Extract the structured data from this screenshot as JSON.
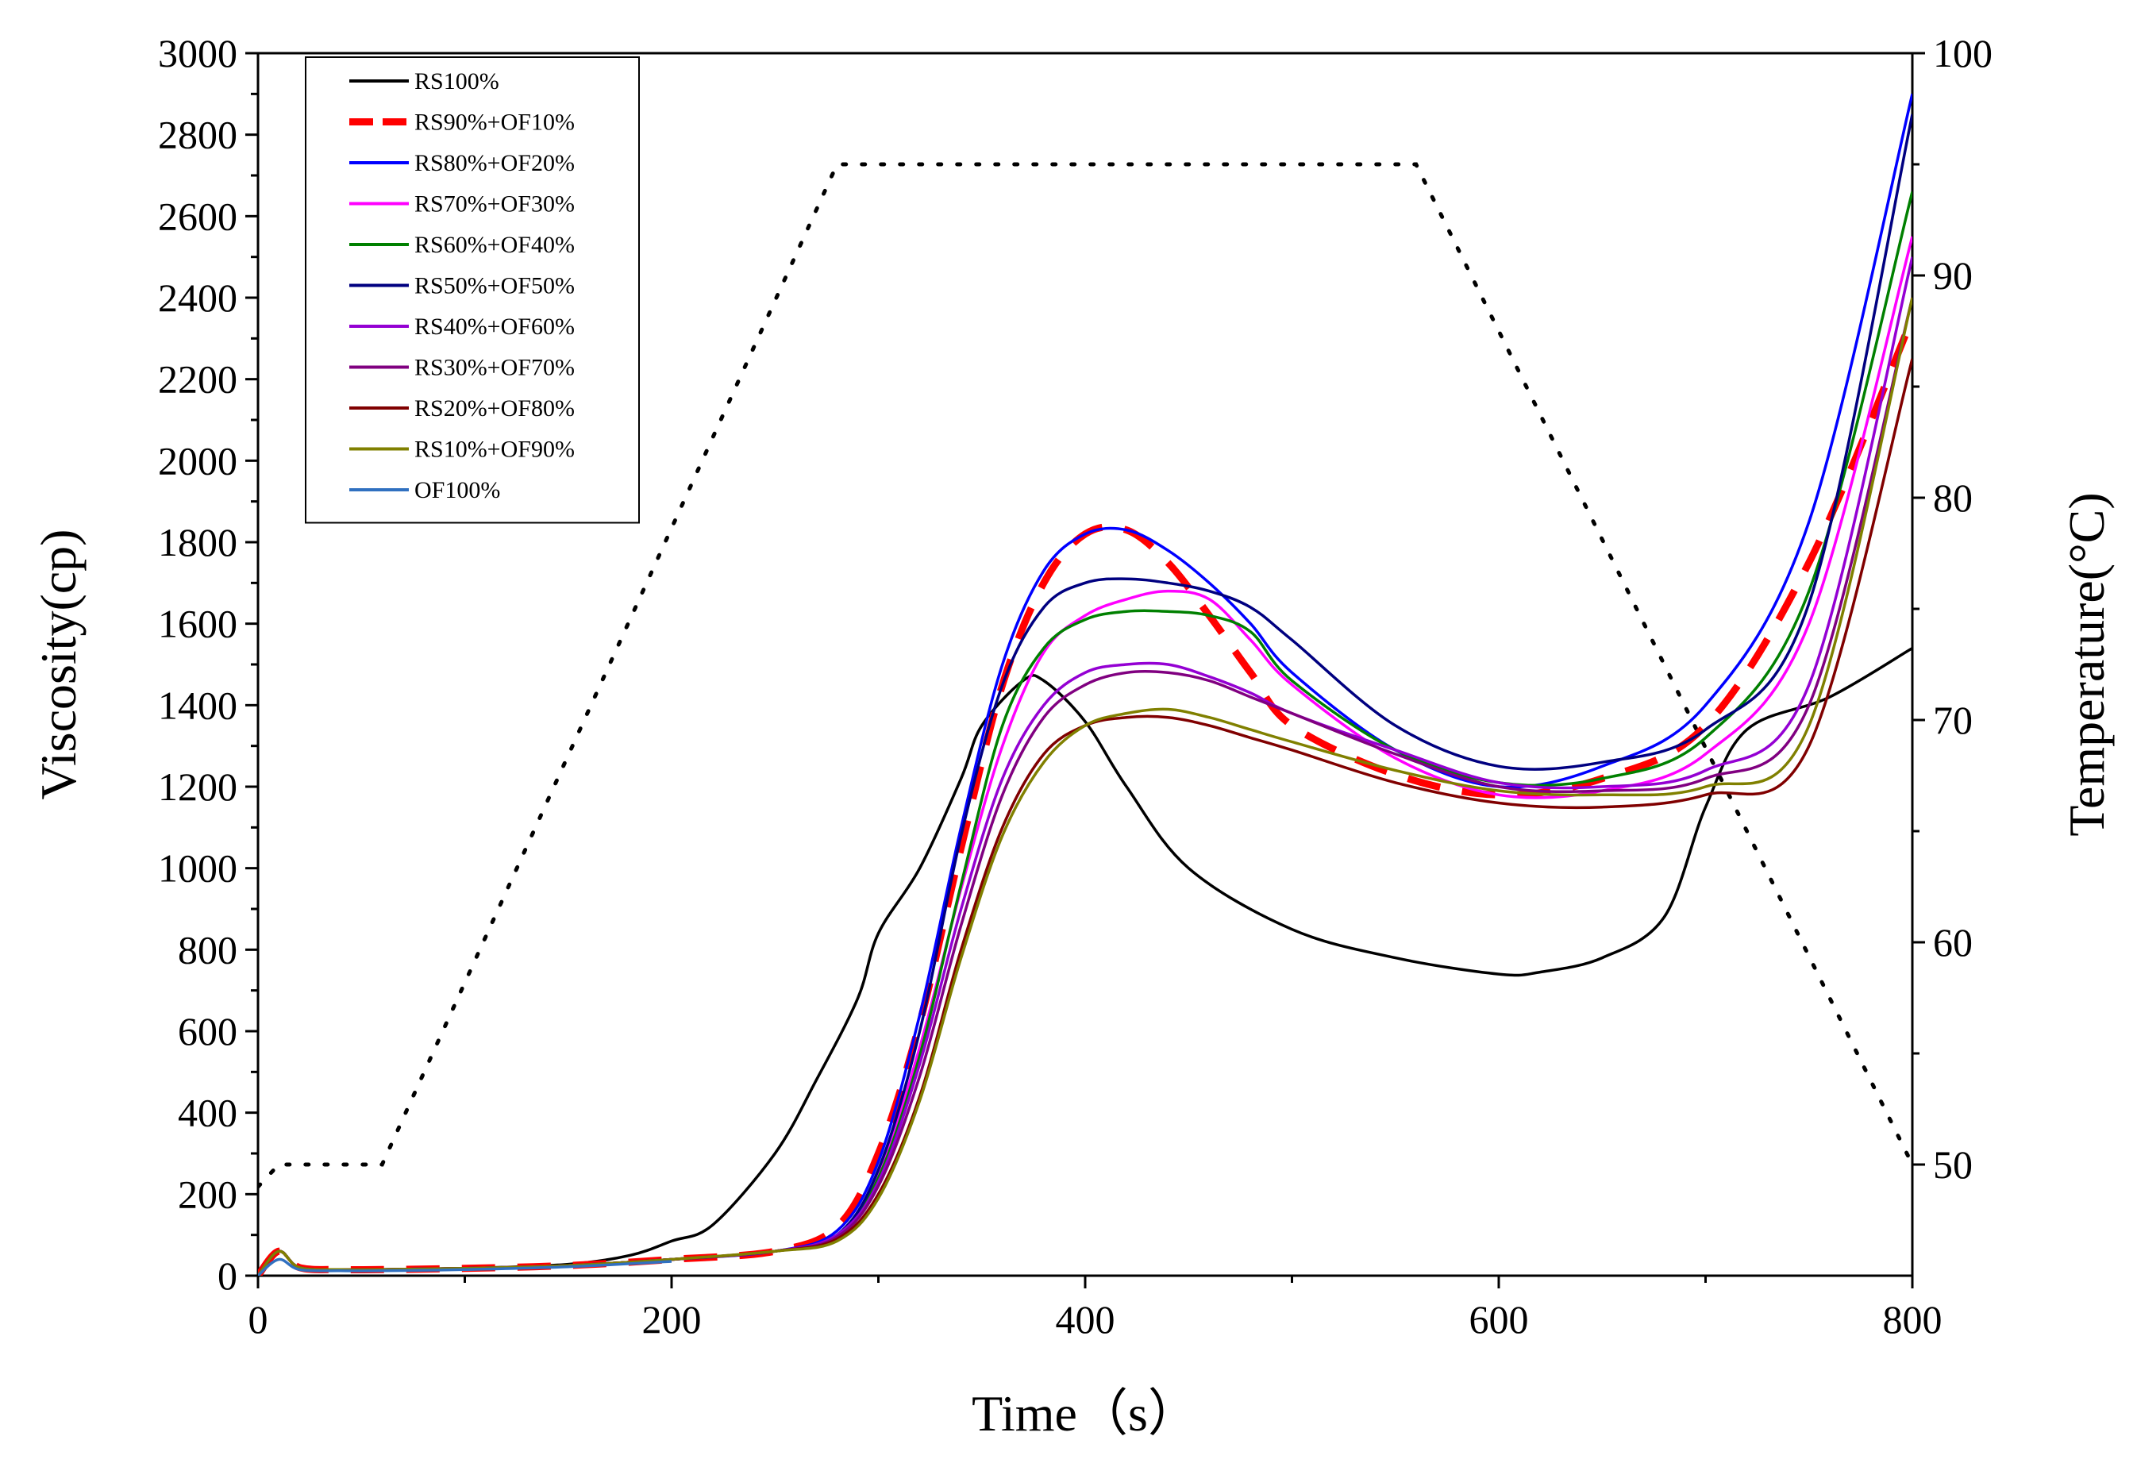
{
  "chart_data": {
    "type": "line",
    "title": "",
    "xlabel": "Time（s）",
    "ylabel": "Viscosity(cp)",
    "y2label": "Temperature(°C)",
    "xlim": [
      0,
      800
    ],
    "ylim": [
      0,
      3000
    ],
    "y2lim": [
      45,
      100
    ],
    "x_ticks": [
      0,
      200,
      400,
      600,
      800
    ],
    "y_ticks": [
      0,
      200,
      400,
      600,
      800,
      1000,
      1200,
      1400,
      1600,
      1800,
      2000,
      2200,
      2400,
      2600,
      2800,
      3000
    ],
    "y2_ticks": [
      50,
      60,
      70,
      80,
      90,
      100
    ],
    "grid": false,
    "legend_position": "top-left",
    "series": [
      {
        "name": "RS100%",
        "color": "#000000",
        "dash": "solid",
        "x": [
          0,
          10,
          20,
          40,
          60,
          100,
          150,
          180,
          200,
          220,
          250,
          270,
          290,
          300,
          320,
          340,
          350,
          370,
          380,
          400,
          420,
          450,
          500,
          550,
          600,
          620,
          650,
          680,
          700,
          720,
          760,
          800
        ],
        "y": [
          0,
          60,
          20,
          15,
          15,
          18,
          28,
          50,
          85,
          125,
          300,
          480,
          680,
          840,
          1000,
          1220,
          1350,
          1460,
          1460,
          1360,
          1200,
          1000,
          850,
          780,
          740,
          745,
          780,
          880,
          1150,
          1340,
          1420,
          1540
        ]
      },
      {
        "name": "RS90%+OF10%",
        "color": "#ff0000",
        "dash": "dashed",
        "x": [
          0,
          10,
          20,
          40,
          60,
          100,
          150,
          200,
          250,
          280,
          300,
          320,
          340,
          360,
          380,
          400,
          420,
          440,
          460,
          480,
          500,
          550,
          600,
          650,
          700,
          750,
          800
        ],
        "y": [
          0,
          60,
          20,
          15,
          15,
          18,
          25,
          40,
          60,
          120,
          300,
          620,
          1050,
          1450,
          1700,
          1820,
          1830,
          1750,
          1620,
          1480,
          1350,
          1230,
          1180,
          1220,
          1350,
          1750,
          2350
        ]
      },
      {
        "name": "RS80%+OF20%",
        "color": "#0000ff",
        "dash": "solid",
        "x": [
          0,
          10,
          20,
          40,
          60,
          100,
          150,
          200,
          250,
          280,
          300,
          320,
          340,
          360,
          380,
          400,
          420,
          440,
          460,
          480,
          500,
          550,
          600,
          650,
          700,
          750,
          800
        ],
        "y": [
          0,
          60,
          20,
          15,
          15,
          18,
          25,
          40,
          60,
          110,
          280,
          640,
          1100,
          1500,
          1730,
          1820,
          1830,
          1780,
          1700,
          1600,
          1480,
          1290,
          1200,
          1250,
          1400,
          1850,
          2900
        ]
      },
      {
        "name": "RS70%+OF30%",
        "color": "#ff00ff",
        "dash": "solid",
        "x": [
          0,
          10,
          20,
          40,
          60,
          100,
          150,
          200,
          250,
          280,
          300,
          320,
          340,
          360,
          380,
          400,
          420,
          440,
          460,
          480,
          500,
          550,
          600,
          650,
          700,
          750,
          800
        ],
        "y": [
          0,
          60,
          20,
          15,
          15,
          18,
          25,
          40,
          60,
          100,
          250,
          560,
          950,
          1300,
          1530,
          1620,
          1660,
          1680,
          1660,
          1560,
          1450,
          1270,
          1180,
          1190,
          1280,
          1600,
          2550
        ]
      },
      {
        "name": "RS60%+OF40%",
        "color": "#008000",
        "dash": "solid",
        "x": [
          0,
          10,
          20,
          40,
          60,
          100,
          150,
          200,
          250,
          280,
          300,
          320,
          340,
          360,
          380,
          400,
          420,
          440,
          460,
          480,
          500,
          550,
          600,
          650,
          700,
          750,
          800
        ],
        "y": [
          0,
          60,
          20,
          15,
          15,
          18,
          25,
          40,
          60,
          100,
          240,
          540,
          960,
          1350,
          1540,
          1610,
          1630,
          1630,
          1620,
          1580,
          1460,
          1290,
          1210,
          1220,
          1320,
          1680,
          2660
        ]
      },
      {
        "name": "RS50%+OF50%",
        "color": "#000080",
        "dash": "solid",
        "x": [
          0,
          10,
          20,
          40,
          60,
          100,
          150,
          200,
          250,
          280,
          300,
          320,
          340,
          360,
          380,
          400,
          420,
          440,
          460,
          480,
          500,
          550,
          600,
          650,
          700,
          750,
          800
        ],
        "y": [
          0,
          60,
          20,
          15,
          15,
          18,
          25,
          40,
          60,
          100,
          260,
          600,
          1080,
          1450,
          1640,
          1700,
          1710,
          1700,
          1680,
          1640,
          1560,
          1350,
          1250,
          1260,
          1340,
          1650,
          2850
        ]
      },
      {
        "name": "RS40%+OF60%",
        "color": "#9400d3",
        "dash": "solid",
        "x": [
          0,
          10,
          20,
          40,
          60,
          100,
          150,
          200,
          250,
          280,
          300,
          320,
          340,
          360,
          380,
          400,
          420,
          440,
          460,
          480,
          500,
          550,
          600,
          650,
          700,
          750,
          800
        ],
        "y": [
          0,
          60,
          20,
          15,
          15,
          18,
          25,
          40,
          60,
          100,
          230,
          520,
          900,
          1220,
          1400,
          1480,
          1500,
          1500,
          1470,
          1430,
          1380,
          1290,
          1210,
          1200,
          1240,
          1450,
          2500
        ]
      },
      {
        "name": "RS30%+OF70%",
        "color": "#800080",
        "dash": "solid",
        "x": [
          0,
          10,
          20,
          40,
          60,
          100,
          150,
          200,
          250,
          280,
          300,
          320,
          340,
          360,
          380,
          400,
          420,
          440,
          460,
          480,
          500,
          550,
          600,
          650,
          700,
          750,
          800
        ],
        "y": [
          0,
          60,
          20,
          15,
          15,
          18,
          25,
          40,
          60,
          95,
          220,
          490,
          860,
          1180,
          1370,
          1450,
          1480,
          1480,
          1460,
          1420,
          1380,
          1280,
          1200,
          1190,
          1220,
          1400,
          2400
        ]
      },
      {
        "name": "RS20%+OF80%",
        "color": "#800000",
        "dash": "solid",
        "x": [
          0,
          10,
          20,
          40,
          60,
          100,
          150,
          200,
          250,
          280,
          300,
          320,
          340,
          360,
          380,
          400,
          420,
          440,
          460,
          480,
          500,
          550,
          600,
          650,
          700,
          750,
          800
        ],
        "y": [
          0,
          60,
          20,
          15,
          15,
          18,
          25,
          40,
          60,
          90,
          200,
          440,
          800,
          1100,
          1280,
          1350,
          1370,
          1370,
          1350,
          1320,
          1290,
          1210,
          1160,
          1150,
          1180,
          1300,
          2250
        ]
      },
      {
        "name": "RS10%+OF90%",
        "color": "#808000",
        "dash": "solid",
        "x": [
          0,
          10,
          20,
          40,
          60,
          100,
          150,
          200,
          250,
          280,
          300,
          320,
          340,
          360,
          380,
          400,
          420,
          440,
          460,
          480,
          500,
          550,
          600,
          650,
          700,
          750,
          800
        ],
        "y": [
          0,
          60,
          20,
          15,
          15,
          18,
          25,
          40,
          60,
          85,
          190,
          430,
          780,
          1080,
          1260,
          1350,
          1380,
          1390,
          1370,
          1340,
          1310,
          1240,
          1190,
          1180,
          1200,
          1350,
          2400
        ]
      },
      {
        "name": "OF100%",
        "color": "#3070c0",
        "dash": "solid",
        "x": [
          0,
          10,
          20,
          40,
          60,
          100,
          150,
          200
        ],
        "y": [
          0,
          40,
          15,
          12,
          12,
          15,
          22,
          35
        ]
      }
    ],
    "temperature_series": {
      "name": "",
      "color": "#000000",
      "dash": "dotted",
      "axis": "right",
      "x": [
        0,
        10,
        60,
        280,
        560,
        800
      ],
      "y": [
        49,
        50,
        50,
        95,
        95,
        50
      ]
    }
  }
}
